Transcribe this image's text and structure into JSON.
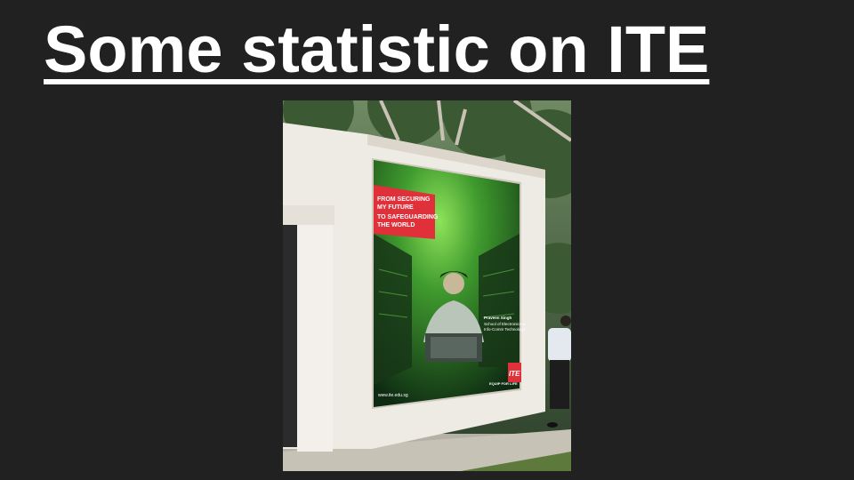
{
  "slide": {
    "title": "Some statistic on ITE"
  },
  "photo": {
    "poster": {
      "headline_lines": [
        "FROM SECURING",
        "MY FUTURE",
        "TO SAFEGUARDING",
        "THE WORLD"
      ],
      "person_name": "Praveen Singh",
      "person_school_lines": [
        "School of Electronics &",
        "Info-Comm Technology"
      ],
      "url": "www.ite.edu.sg",
      "tagline": "EQUIP FOR LIFE",
      "logo": "ITE"
    }
  },
  "colors": {
    "background": "#212121",
    "title": "#ffffff",
    "poster_red": "#e0313a",
    "poster_green": "#4fbf3a",
    "wall": "#eeeae4"
  }
}
